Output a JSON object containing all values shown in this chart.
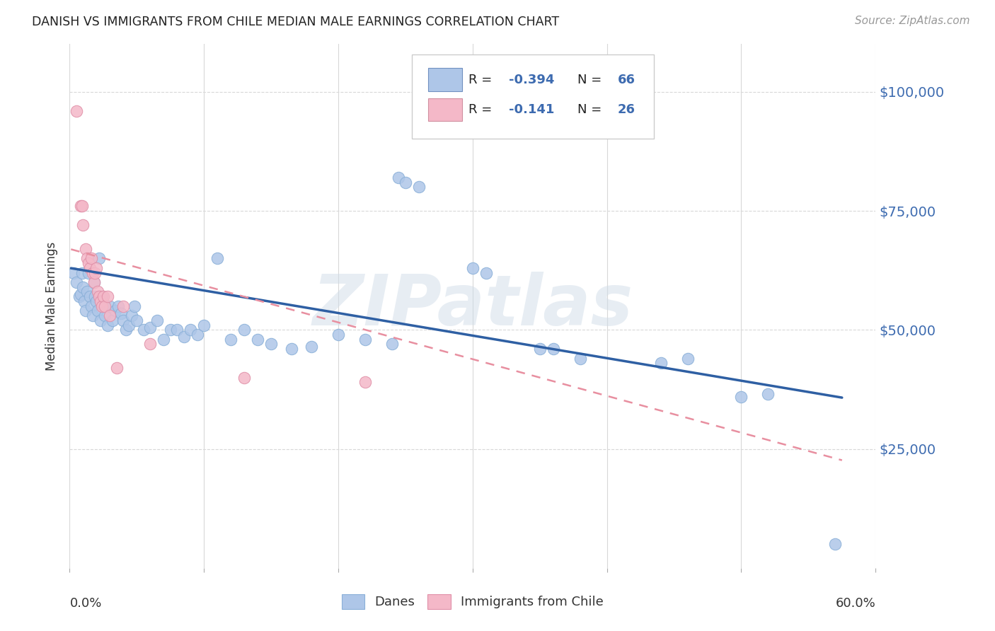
{
  "title": "DANISH VS IMMIGRANTS FROM CHILE MEDIAN MALE EARNINGS CORRELATION CHART",
  "source": "Source: ZipAtlas.com",
  "ylabel": "Median Male Earnings",
  "watermark": "ZIPatlas",
  "xlim": [
    0.0,
    0.6
  ],
  "ylim": [
    0,
    110000
  ],
  "dane_color": "#aec6e8",
  "chile_color": "#f4b8c8",
  "dane_line_color": "#2e5fa3",
  "chile_line_color": "#e88fa0",
  "background_color": "#ffffff",
  "dane_points": [
    [
      0.003,
      62000
    ],
    [
      0.005,
      60000
    ],
    [
      0.007,
      57000
    ],
    [
      0.008,
      57500
    ],
    [
      0.009,
      62000
    ],
    [
      0.01,
      59000
    ],
    [
      0.011,
      56000
    ],
    [
      0.012,
      54000
    ],
    [
      0.013,
      58000
    ],
    [
      0.014,
      62000
    ],
    [
      0.015,
      57000
    ],
    [
      0.016,
      55000
    ],
    [
      0.017,
      53000
    ],
    [
      0.018,
      60000
    ],
    [
      0.019,
      57000
    ],
    [
      0.02,
      56000
    ],
    [
      0.021,
      54000
    ],
    [
      0.022,
      65000
    ],
    [
      0.023,
      52000
    ],
    [
      0.024,
      57000
    ],
    [
      0.025,
      55000
    ],
    [
      0.026,
      53000
    ],
    [
      0.028,
      51000
    ],
    [
      0.03,
      55000
    ],
    [
      0.032,
      52000
    ],
    [
      0.034,
      54000
    ],
    [
      0.036,
      55000
    ],
    [
      0.038,
      53500
    ],
    [
      0.04,
      52000
    ],
    [
      0.042,
      50000
    ],
    [
      0.044,
      51000
    ],
    [
      0.046,
      53000
    ],
    [
      0.048,
      55000
    ],
    [
      0.05,
      52000
    ],
    [
      0.055,
      50000
    ],
    [
      0.06,
      50500
    ],
    [
      0.065,
      52000
    ],
    [
      0.07,
      48000
    ],
    [
      0.075,
      50000
    ],
    [
      0.08,
      50000
    ],
    [
      0.085,
      48500
    ],
    [
      0.09,
      50000
    ],
    [
      0.095,
      49000
    ],
    [
      0.1,
      51000
    ],
    [
      0.11,
      65000
    ],
    [
      0.12,
      48000
    ],
    [
      0.13,
      50000
    ],
    [
      0.14,
      48000
    ],
    [
      0.15,
      47000
    ],
    [
      0.165,
      46000
    ],
    [
      0.18,
      46500
    ],
    [
      0.2,
      49000
    ],
    [
      0.22,
      48000
    ],
    [
      0.24,
      47000
    ],
    [
      0.245,
      82000
    ],
    [
      0.25,
      81000
    ],
    [
      0.26,
      80000
    ],
    [
      0.3,
      63000
    ],
    [
      0.31,
      62000
    ],
    [
      0.35,
      46000
    ],
    [
      0.36,
      46000
    ],
    [
      0.38,
      44000
    ],
    [
      0.44,
      43000
    ],
    [
      0.46,
      44000
    ],
    [
      0.5,
      36000
    ],
    [
      0.52,
      36500
    ],
    [
      0.57,
      5000
    ]
  ],
  "chile_points": [
    [
      0.005,
      96000
    ],
    [
      0.008,
      76000
    ],
    [
      0.009,
      76000
    ],
    [
      0.01,
      72000
    ],
    [
      0.012,
      67000
    ],
    [
      0.013,
      65000
    ],
    [
      0.014,
      64000
    ],
    [
      0.015,
      63000
    ],
    [
      0.016,
      65000
    ],
    [
      0.017,
      62000
    ],
    [
      0.018,
      60000
    ],
    [
      0.019,
      62000
    ],
    [
      0.02,
      63000
    ],
    [
      0.021,
      58000
    ],
    [
      0.022,
      57000
    ],
    [
      0.023,
      56000
    ],
    [
      0.024,
      55000
    ],
    [
      0.025,
      57000
    ],
    [
      0.026,
      55000
    ],
    [
      0.028,
      57000
    ],
    [
      0.03,
      53000
    ],
    [
      0.035,
      42000
    ],
    [
      0.04,
      55000
    ],
    [
      0.06,
      47000
    ],
    [
      0.13,
      40000
    ],
    [
      0.22,
      39000
    ]
  ]
}
